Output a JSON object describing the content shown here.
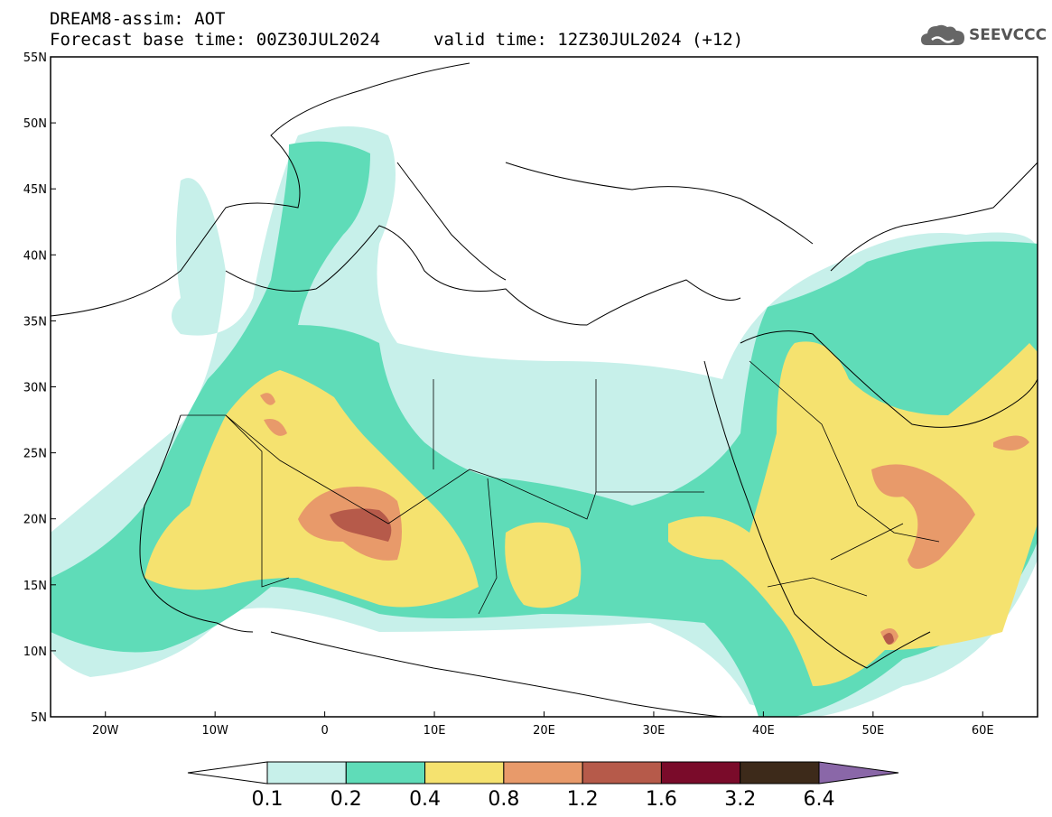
{
  "header": {
    "product": "DREAM8-assim: AOT",
    "base_time": "Forecast base time: 00Z30JUL2024",
    "valid_time": "valid time: 12Z30JUL2024 (+12)"
  },
  "logo": {
    "text": "SEEVCCC",
    "icon": "cloud-icon"
  },
  "map": {
    "lon_range": [
      -25,
      65
    ],
    "lat_range": [
      5,
      55
    ],
    "lon_ticks": [
      "20W",
      "10W",
      "0",
      "10E",
      "20E",
      "30E",
      "40E",
      "50E",
      "60E"
    ],
    "lat_ticks": [
      "55N",
      "50N",
      "45N",
      "40N",
      "35N",
      "30N",
      "25N",
      "20N",
      "15N",
      "10N",
      "5N"
    ]
  },
  "colorbar": {
    "labels": [
      "0.1",
      "0.2",
      "0.4",
      "0.8",
      "1.2",
      "1.6",
      "3.2",
      "6.4"
    ],
    "colors": [
      "#c7f0ea",
      "#5fdcb8",
      "#f5e26f",
      "#e89a6a",
      "#b65a4a",
      "#7a0b2a",
      "#3d2a1a",
      "#8a67a8"
    ]
  }
}
